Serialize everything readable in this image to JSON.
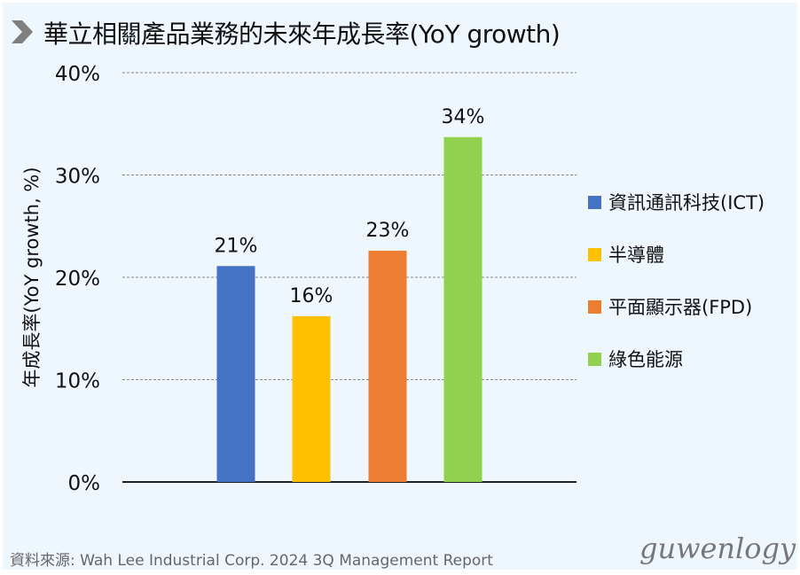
{
  "title": "華立相關產品業務的未來年成長率(YoY growth)",
  "source": "資料來源: Wah Lee Industrial Corp. 2024 3Q Management Report",
  "watermark": "guwenlogy",
  "icons": {
    "title_marker": "chevron-right-icon"
  },
  "chart_data": {
    "type": "bar",
    "title": "華立相關產品業務的未來年成長率(YoY growth)",
    "xlabel": "",
    "ylabel": "年成長率(YoY growth, %)",
    "ylim": [
      0,
      40
    ],
    "yticks": [
      0,
      10,
      20,
      30,
      40
    ],
    "ytick_labels": [
      "0%",
      "10%",
      "20%",
      "30%",
      "40%"
    ],
    "grid": "horizontal dashed",
    "legend_placement": "right",
    "categories": [
      "資訊通訊科技(ICT)",
      "半導體",
      "平面顯示器(FPD)",
      "綠色能源"
    ],
    "values": [
      21.1,
      16.2,
      22.6,
      33.7
    ],
    "data_labels": [
      "21%",
      "16%",
      "23%",
      "34%"
    ],
    "colors": [
      "#4472c4",
      "#ffc000",
      "#ed7d31",
      "#92d050"
    ]
  }
}
